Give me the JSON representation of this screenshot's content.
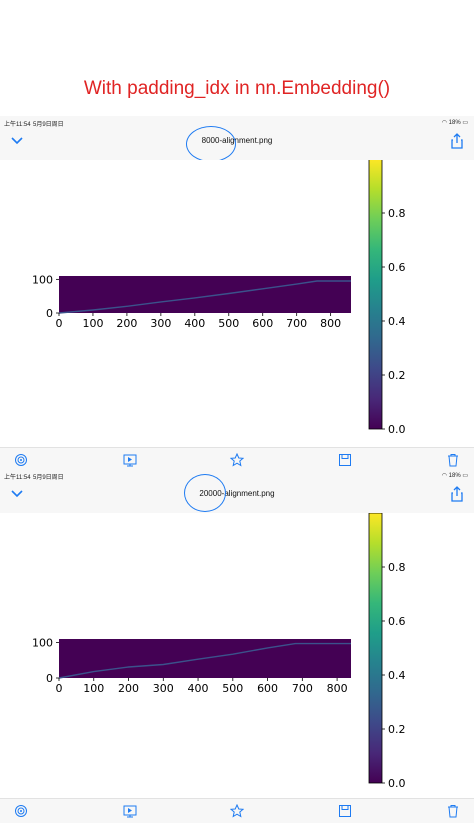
{
  "caption": "With padding_idx in nn.Embedding()",
  "status_bar": {
    "time": "上午11:54",
    "date": "5月9日周日",
    "battery": "18%"
  },
  "icons": {
    "back": "chevron-down-icon",
    "share": "share-icon",
    "airdrop": "airdrop-icon",
    "slideshow": "slideshow-icon",
    "favorite": "star-icon",
    "save": "save-icon",
    "delete": "trash-icon",
    "wifi": "wifi-icon",
    "battery": "battery-icon"
  },
  "colors": {
    "accent": "#1e7bf2",
    "caption": "#e02424",
    "plot_bg": "#440154",
    "line": "#3b528b"
  },
  "panels": [
    {
      "filename": "8000-alignment.png",
      "chart_data": {
        "type": "heatmap",
        "x_ticks": [
          "0",
          "100",
          "200",
          "300",
          "400",
          "500",
          "600",
          "700",
          "800"
        ],
        "y_ticks": [
          "0",
          "100"
        ],
        "xlim": [
          0,
          860
        ],
        "ylim": [
          0,
          110
        ],
        "colorbar_ticks": [
          "0.0",
          "0.2",
          "0.4",
          "0.6",
          "0.8"
        ],
        "colorbar_range": [
          0,
          1
        ],
        "alignment_path": {
          "x": [
            0,
            100,
            200,
            300,
            400,
            500,
            600,
            700,
            760,
            860
          ],
          "y": [
            0,
            9,
            20,
            33,
            45,
            58,
            72,
            86,
            95,
            95
          ]
        }
      }
    },
    {
      "filename": "20000-alignment.png",
      "chart_data": {
        "type": "heatmap",
        "x_ticks": [
          "0",
          "100",
          "200",
          "300",
          "400",
          "500",
          "600",
          "700",
          "800"
        ],
        "y_ticks": [
          "0",
          "100"
        ],
        "xlim": [
          0,
          840
        ],
        "ylim": [
          0,
          110
        ],
        "colorbar_ticks": [
          "0.0",
          "0.2",
          "0.4",
          "0.6",
          "0.8"
        ],
        "colorbar_range": [
          0,
          1
        ],
        "alignment_path": {
          "x": [
            0,
            100,
            200,
            300,
            400,
            500,
            600,
            680,
            840
          ],
          "y": [
            0,
            18,
            31,
            38,
            53,
            67,
            85,
            97,
            97
          ]
        }
      }
    }
  ]
}
